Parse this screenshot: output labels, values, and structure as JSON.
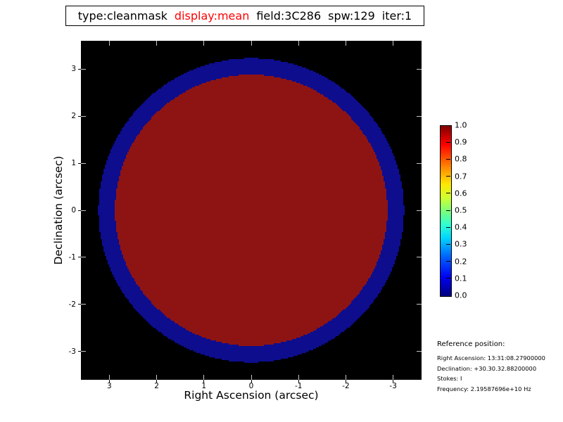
{
  "title_box": {
    "parts": [
      {
        "text": "type:cleanmask",
        "color": "#000000"
      },
      {
        "text": "display:mean",
        "color": "#ff0000"
      },
      {
        "text": "field:3C286",
        "color": "#000000"
      },
      {
        "text": "spw:129",
        "color": "#000000"
      },
      {
        "text": "iter:1",
        "color": "#000000"
      }
    ]
  },
  "chart_data": {
    "type": "heatmap",
    "title": "type:cleanmask display:mean field:3C286 spw:129 iter:1",
    "xlabel": "Right Ascension (arcsec)",
    "ylabel": "Declination (arcsec)",
    "xlim": [
      3.6,
      -3.6
    ],
    "ylim": [
      -3.6,
      3.6
    ],
    "x_axis_reversed": true,
    "grid": false,
    "background_color": "#000000",
    "xticks": [
      {
        "value": 3,
        "label": "3"
      },
      {
        "value": 2,
        "label": "2"
      },
      {
        "value": 1,
        "label": "1"
      },
      {
        "value": 0,
        "label": "0"
      },
      {
        "value": -1,
        "label": "-1"
      },
      {
        "value": -2,
        "label": "-2"
      },
      {
        "value": -3,
        "label": "-3"
      }
    ],
    "yticks": [
      {
        "value": 3,
        "label": "3"
      },
      {
        "value": 2,
        "label": "2"
      },
      {
        "value": 1,
        "label": "1"
      },
      {
        "value": 0,
        "label": "0"
      },
      {
        "value": -1,
        "label": "-1"
      },
      {
        "value": -2,
        "label": "-2"
      },
      {
        "value": -3,
        "label": "-3"
      }
    ],
    "mask_regions": [
      {
        "name": "outer-annulus",
        "shape": "annulus",
        "center_arcsec": [
          0,
          0
        ],
        "outer_radius_arcsec": 3.23,
        "inner_radius_arcsec": 2.88,
        "color": "#0d0d8e",
        "approx_value": 0.05
      },
      {
        "name": "inner-disk",
        "shape": "circle",
        "center_arcsec": [
          0,
          0
        ],
        "radius_arcsec": 2.88,
        "color": "#8e1414",
        "approx_value": 1.0
      }
    ],
    "colorbar": {
      "min": 0.0,
      "max": 1.0,
      "colormap": "jet",
      "position": "right",
      "tick_labels": [
        "1.0",
        "0.9",
        "0.8",
        "0.7",
        "0.6",
        "0.5",
        "0.4",
        "0.3",
        "0.2",
        "0.1",
        "0.0"
      ],
      "gradient_bottom_to_top": [
        {
          "p": 0,
          "c": "#000080"
        },
        {
          "p": 11,
          "c": "#0000f1"
        },
        {
          "p": 23,
          "c": "#0061ff"
        },
        {
          "p": 34,
          "c": "#00d4ff"
        },
        {
          "p": 42,
          "c": "#2effd1"
        },
        {
          "p": 50,
          "c": "#7dff7a"
        },
        {
          "p": 58,
          "c": "#d1ff2e"
        },
        {
          "p": 66,
          "c": "#ffe600"
        },
        {
          "p": 77,
          "c": "#ff7a00"
        },
        {
          "p": 89,
          "c": "#ff0000"
        },
        {
          "p": 100,
          "c": "#800000"
        }
      ]
    }
  },
  "reference": {
    "heading": "Reference position:",
    "lines": [
      "Right Ascension: 13:31:08.27900000",
      "Declination: +30.30.32.88200000",
      "Stokes: I",
      "Frequency: 2.19587696e+10 Hz"
    ]
  }
}
